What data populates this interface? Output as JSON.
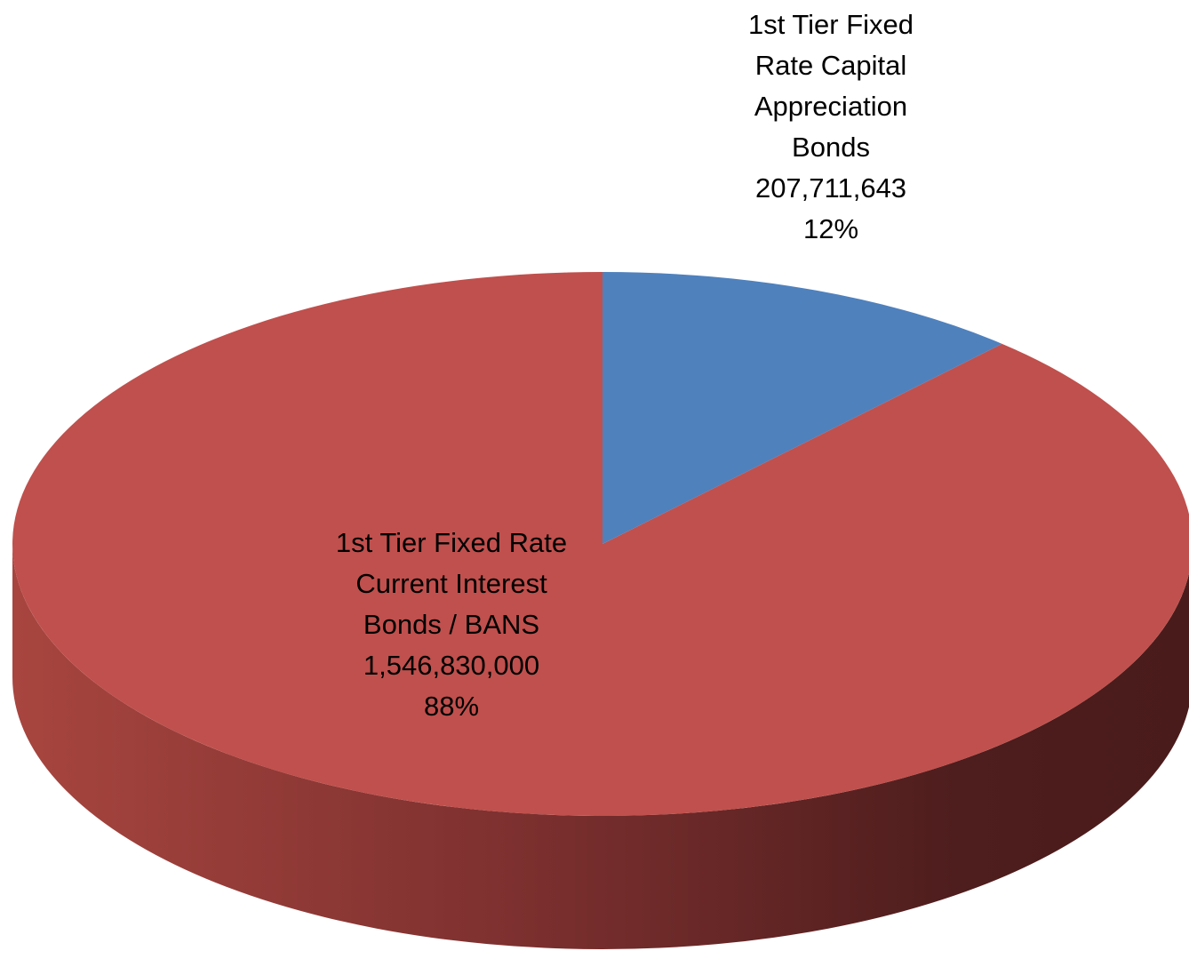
{
  "chart_data": {
    "type": "pie",
    "categories": [
      "1st Tier Fixed Rate Capital Appreciation Bonds",
      "1st Tier Fixed Rate Current Interest Bonds / BANS"
    ],
    "values": [
      207711643,
      1546830000
    ],
    "value_labels": [
      "207,711,643",
      "1,546,830,000"
    ],
    "percents": [
      12,
      88
    ],
    "percent_labels": [
      "12%",
      "88%"
    ],
    "colors": [
      "#4f81bd",
      "#c0504d"
    ]
  }
}
